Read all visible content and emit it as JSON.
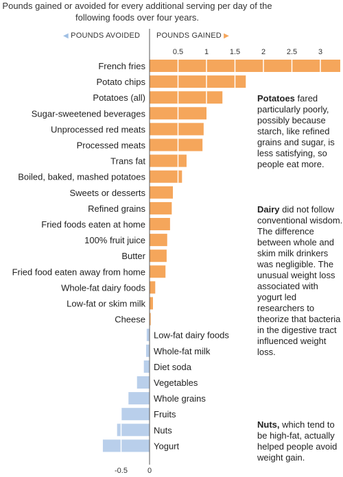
{
  "intro": "Pounds gained or avoided for every additional serving per day of the following foods over four years.",
  "legend": {
    "avoided": "POUNDS AVOIDED",
    "gained": "POUNDS GAINED"
  },
  "colors": {
    "gained": "#f5a65b",
    "avoided": "#b9cfeb",
    "axis": "#555555"
  },
  "notes": [
    {
      "title": "Potatoes",
      "text": "fared particularly poorly, possibly because starch, like refined grains and sugar, is less satisfying, so people eat more."
    },
    {
      "title": "Dairy",
      "text": "did not follow conventional wisdom. The difference between whole and skim milk drinkers was negligible. The unusual weight loss associated with yogurt led researchers to theorize that bacteria in the digestive tract influenced weight loss."
    },
    {
      "title": "Nuts,",
      "text": "which tend to be high-fat, actually helped people avoid weight gain."
    }
  ],
  "chart_data": {
    "type": "bar",
    "orientation": "horizontal",
    "categories": [
      "French fries",
      "Potato chips",
      "Potatoes (all)",
      "Sugar-sweetened beverages",
      "Unprocessed red meats",
      "Processed meats",
      "Trans fat",
      "Boiled, baked, mashed potatoes",
      "Sweets or desserts",
      "Refined grains",
      "Fried foods eaten at home",
      "100% fruit juice",
      "Butter",
      "Fried food eaten away from home",
      "Whole-fat dairy foods",
      "Low-fat or skim milk",
      "Cheese",
      "Low-fat dairy foods",
      "Whole-fat milk",
      "Diet soda",
      "Vegetables",
      "Whole grains",
      "Fruits",
      "Nuts",
      "Yogurt"
    ],
    "values": [
      3.35,
      1.69,
      1.28,
      1.0,
      0.95,
      0.93,
      0.65,
      0.57,
      0.41,
      0.39,
      0.36,
      0.31,
      0.3,
      0.28,
      0.1,
      0.06,
      0.02,
      -0.05,
      -0.06,
      -0.1,
      -0.22,
      -0.37,
      -0.49,
      -0.57,
      -0.82
    ],
    "xlim": [
      -1,
      3.4
    ],
    "top_ticks": [
      0.5,
      1,
      1.5,
      2,
      2.5,
      3
    ],
    "top_tick_labels": [
      "0.5",
      "1",
      "1.5",
      "2",
      "2.5",
      "3"
    ],
    "bottom_ticks": [
      -0.5,
      0
    ],
    "bottom_tick_labels": [
      "-0.5",
      "0"
    ],
    "gridlines": "white vertical lines inside bars"
  }
}
